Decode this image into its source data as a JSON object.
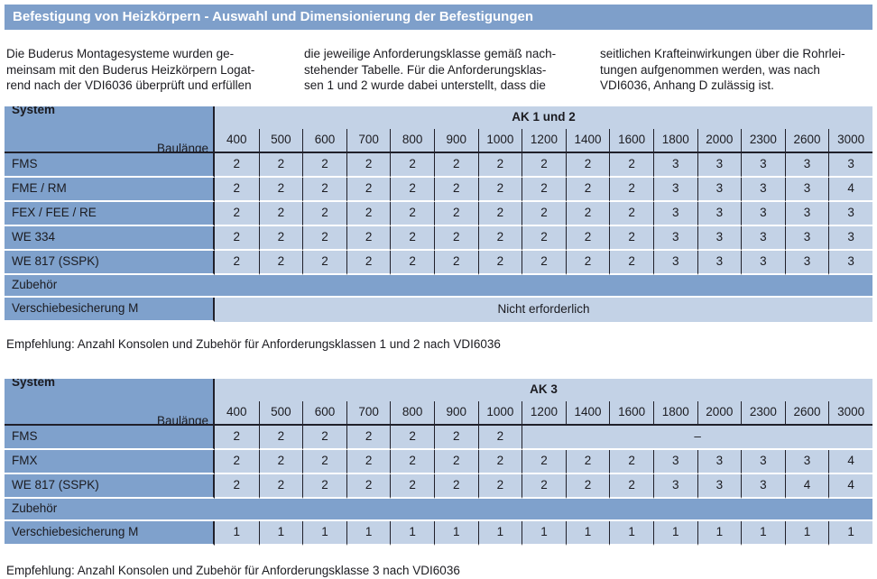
{
  "colors": {
    "title_bar": "#7E9FCA",
    "label_cell": "#7FA1CC",
    "data_cell": "#C3D2E6",
    "grid_line": "#20202A",
    "text": "#1B1B20"
  },
  "header": {
    "title": "Befestigung von Heizkörpern - Auswahl und Dimensionierung der Befestigungen"
  },
  "intro": {
    "col1": {
      "line1": "Die Buderus Montagesysteme wurden ge-",
      "line2": "meinsam mit den Buderus Heizkörpern Logat-",
      "line3": "rend nach der VDI6036 überprüft und erfüllen"
    },
    "col2": {
      "line1": "die jeweilige Anforderungsklasse gemäß nach-",
      "line2": "stehender Tabelle. Für die Anforderungsklas-",
      "line3": "sen 1 und 2 wurde dabei unterstellt, dass die"
    },
    "col3": {
      "line1": "seitlichen Krafteinwirkungen über die Rohrlei-",
      "line2": "tungen aufgenommen werden, was nach",
      "line3": "VDI6036, Anhang D zulässig ist."
    }
  },
  "tables": [
    {
      "id": "table-ak-1-und-2",
      "system_label": "System",
      "baulaenge_label": "Baulänge",
      "ak_label": "AK 1 und 2",
      "columns": [
        "400",
        "500",
        "600",
        "700",
        "800",
        "900",
        "1000",
        "1200",
        "1400",
        "1600",
        "1800",
        "2000",
        "2300",
        "2600",
        "3000"
      ],
      "rows": [
        {
          "label": "FMS",
          "values": [
            "2",
            "2",
            "2",
            "2",
            "2",
            "2",
            "2",
            "2",
            "2",
            "2",
            "3",
            "3",
            "3",
            "3",
            "3"
          ]
        },
        {
          "label": "FME / RM",
          "values": [
            "2",
            "2",
            "2",
            "2",
            "2",
            "2",
            "2",
            "2",
            "2",
            "2",
            "3",
            "3",
            "3",
            "3",
            "4"
          ]
        },
        {
          "label": "FEX / FEE / RE",
          "values": [
            "2",
            "2",
            "2",
            "2",
            "2",
            "2",
            "2",
            "2",
            "2",
            "2",
            "3",
            "3",
            "3",
            "3",
            "3"
          ]
        },
        {
          "label": "WE 334",
          "values": [
            "2",
            "2",
            "2",
            "2",
            "2",
            "2",
            "2",
            "2",
            "2",
            "2",
            "3",
            "3",
            "3",
            "3",
            "3"
          ]
        },
        {
          "label": "WE 817 (SSPK)",
          "values": [
            "2",
            "2",
            "2",
            "2",
            "2",
            "2",
            "2",
            "2",
            "2",
            "2",
            "3",
            "3",
            "3",
            "3",
            "3"
          ]
        }
      ],
      "zubehoer_label": "Zubehör",
      "accessory": {
        "label": "Verschiebesicherung M",
        "span_text": "Nicht erforderlich"
      },
      "caption": "Empfehlung: Anzahl Konsolen und Zubehör für Anforderungsklassen 1 und 2 nach VDI6036"
    },
    {
      "id": "table-ak-3",
      "system_label": "System",
      "baulaenge_label": "Baulänge",
      "ak_label": "AK 3",
      "columns": [
        "400",
        "500",
        "600",
        "700",
        "800",
        "900",
        "1000",
        "1200",
        "1400",
        "1600",
        "1800",
        "2000",
        "2300",
        "2600",
        "3000"
      ],
      "rows": [
        {
          "label": "FMS",
          "values": [
            "2",
            "2",
            "2",
            "2",
            "2",
            "2",
            "2"
          ],
          "span_text": "–",
          "span_cols": 8
        },
        {
          "label": "FMX",
          "values": [
            "2",
            "2",
            "2",
            "2",
            "2",
            "2",
            "2",
            "2",
            "2",
            "2",
            "3",
            "3",
            "3",
            "3",
            "4"
          ]
        },
        {
          "label": "WE 817 (SSPK)",
          "values": [
            "2",
            "2",
            "2",
            "2",
            "2",
            "2",
            "2",
            "2",
            "2",
            "2",
            "3",
            "3",
            "3",
            "4",
            "4"
          ]
        }
      ],
      "zubehoer_label": "Zubehör",
      "accessory": {
        "label": "Verschiebesicherung M",
        "values": [
          "1",
          "1",
          "1",
          "1",
          "1",
          "1",
          "1",
          "1",
          "1",
          "1",
          "1",
          "1",
          "1",
          "1",
          "1"
        ]
      },
      "caption": "Empfehlung: Anzahl Konsolen und Zubehör für Anforderungsklasse 3 nach VDI6036"
    }
  ]
}
